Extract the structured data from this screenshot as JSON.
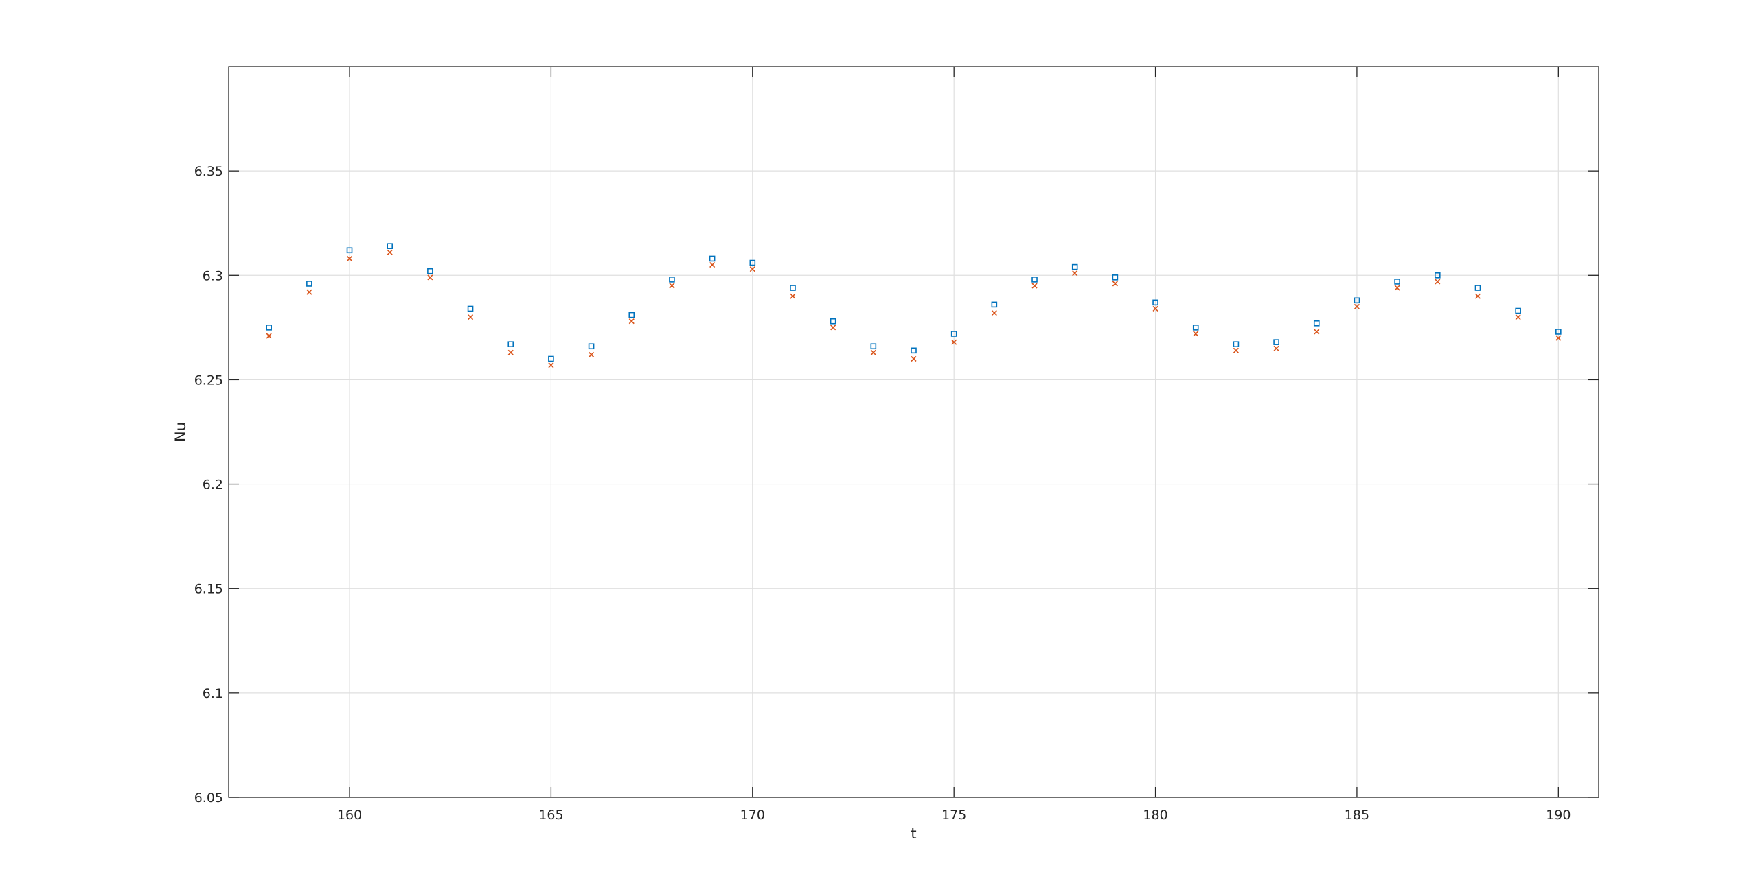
{
  "chart_data": {
    "type": "scatter",
    "title": "",
    "xlabel": "t",
    "ylabel": "Nu",
    "xlim": [
      157,
      191
    ],
    "ylim": [
      6.05,
      6.4
    ],
    "xticks": [
      160,
      165,
      170,
      175,
      180,
      185,
      190
    ],
    "xtick_labels": [
      "160",
      "165",
      "170",
      "175",
      "180",
      "185",
      "190"
    ],
    "yticks": [
      6.05,
      6.1,
      6.15,
      6.2,
      6.25,
      6.3,
      6.35
    ],
    "ytick_labels": [
      "6.05",
      "6.1",
      "6.15",
      "6.2",
      "6.25",
      "6.3",
      "6.35"
    ],
    "grid": true,
    "legend": "none",
    "series": [
      {
        "marker": "square",
        "color": "#0072BD",
        "x": [
          158,
          159,
          160,
          161,
          162,
          163,
          164,
          165,
          166,
          167,
          168,
          169,
          170,
          171,
          172,
          173,
          174,
          175,
          176,
          177,
          178,
          179,
          180,
          181,
          182,
          183,
          184,
          185,
          186,
          187,
          188,
          189,
          190
        ],
        "y": [
          6.275,
          6.296,
          6.312,
          6.314,
          6.302,
          6.284,
          6.267,
          6.26,
          6.266,
          6.281,
          6.298,
          6.308,
          6.306,
          6.294,
          6.278,
          6.266,
          6.264,
          6.272,
          6.286,
          6.298,
          6.304,
          6.299,
          6.287,
          6.275,
          6.267,
          6.268,
          6.277,
          6.288,
          6.297,
          6.3,
          6.294,
          6.283,
          6.273
        ]
      },
      {
        "marker": "x",
        "color": "#D95319",
        "x": [
          158,
          159,
          160,
          161,
          162,
          163,
          164,
          165,
          166,
          167,
          168,
          169,
          170,
          171,
          172,
          173,
          174,
          175,
          176,
          177,
          178,
          179,
          180,
          181,
          182,
          183,
          184,
          185,
          186,
          187,
          188,
          189,
          190
        ],
        "y": [
          6.271,
          6.292,
          6.308,
          6.311,
          6.299,
          6.28,
          6.263,
          6.257,
          6.262,
          6.278,
          6.295,
          6.305,
          6.303,
          6.29,
          6.275,
          6.263,
          6.26,
          6.268,
          6.282,
          6.295,
          6.301,
          6.296,
          6.284,
          6.272,
          6.264,
          6.265,
          6.273,
          6.285,
          6.294,
          6.297,
          6.29,
          6.28,
          6.27
        ]
      }
    ]
  }
}
